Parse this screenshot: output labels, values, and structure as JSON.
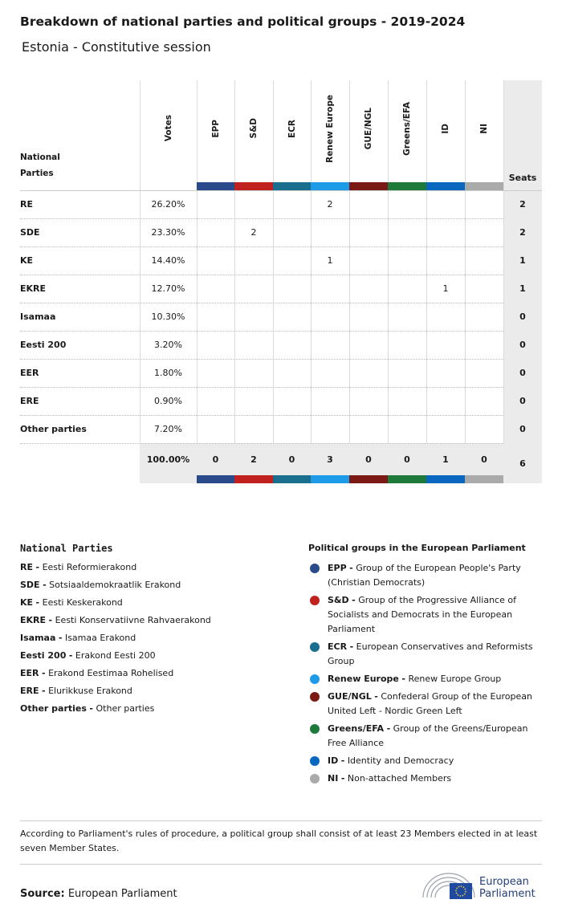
{
  "header": {
    "title": "Breakdown of national parties and political groups - 2019-2024",
    "subtitle": "Estonia - Constitutive session"
  },
  "table": {
    "party_header": "National Parties",
    "votes_header": "Votes",
    "seats_header": "Seats",
    "groups": [
      {
        "name": "EPP",
        "color": "#2b4a8b"
      },
      {
        "name": "S&D",
        "color": "#c0201e"
      },
      {
        "name": "ECR",
        "color": "#1a6f8f"
      },
      {
        "name": "Renew Europe",
        "color": "#1e9be8"
      },
      {
        "name": "GUE/NGL",
        "color": "#7b1a14"
      },
      {
        "name": "Greens/EFA",
        "color": "#1e7a3a"
      },
      {
        "name": "ID",
        "color": "#0a67c0"
      },
      {
        "name": "NI",
        "color": "#aaaaaa"
      }
    ],
    "rows": [
      {
        "party": "RE",
        "votes": "26.20%",
        "groups": [
          null,
          null,
          null,
          2,
          null,
          null,
          null,
          null
        ],
        "seats": 2
      },
      {
        "party": "SDE",
        "votes": "23.30%",
        "groups": [
          null,
          2,
          null,
          null,
          null,
          null,
          null,
          null
        ],
        "seats": 2
      },
      {
        "party": "KE",
        "votes": "14.40%",
        "groups": [
          null,
          null,
          null,
          1,
          null,
          null,
          null,
          null
        ],
        "seats": 1
      },
      {
        "party": "EKRE",
        "votes": "12.70%",
        "groups": [
          null,
          null,
          null,
          null,
          null,
          null,
          1,
          null
        ],
        "seats": 1
      },
      {
        "party": "Isamaa",
        "votes": "10.30%",
        "groups": [
          null,
          null,
          null,
          null,
          null,
          null,
          null,
          null
        ],
        "seats": 0
      },
      {
        "party": "Eesti 200",
        "votes": "3.20%",
        "groups": [
          null,
          null,
          null,
          null,
          null,
          null,
          null,
          null
        ],
        "seats": 0
      },
      {
        "party": "EER",
        "votes": "1.80%",
        "groups": [
          null,
          null,
          null,
          null,
          null,
          null,
          null,
          null
        ],
        "seats": 0
      },
      {
        "party": "ERE",
        "votes": "0.90%",
        "groups": [
          null,
          null,
          null,
          null,
          null,
          null,
          null,
          null
        ],
        "seats": 0
      },
      {
        "party": "Other parties",
        "votes": "7.20%",
        "groups": [
          null,
          null,
          null,
          null,
          null,
          null,
          null,
          null
        ],
        "seats": 0
      }
    ],
    "totals": {
      "votes": "100.00%",
      "groups": [
        0,
        2,
        0,
        3,
        0,
        0,
        1,
        0
      ],
      "seats": 6
    }
  },
  "legend_separator": "-",
  "national_legend": {
    "title": "National Parties",
    "items": [
      {
        "abbr": "RE",
        "name": "Eesti Reformierakond"
      },
      {
        "abbr": "SDE",
        "name": "Sotsiaaldemokraatlik Erakond"
      },
      {
        "abbr": "KE",
        "name": "Eesti Keskerakond"
      },
      {
        "abbr": "EKRE",
        "name": "Eesti Konservatiivne Rahvaerakond"
      },
      {
        "abbr": "Isamaa",
        "name": "Isamaa Erakond"
      },
      {
        "abbr": "Eesti 200",
        "name": "Erakond Eesti 200"
      },
      {
        "abbr": "EER",
        "name": "Erakond Eestimaa Rohelised"
      },
      {
        "abbr": "ERE",
        "name": "Elurikkuse Erakond"
      },
      {
        "abbr": "Other parties",
        "name": "Other parties"
      }
    ]
  },
  "group_legend": {
    "title": "Political groups in the European Parliament",
    "items": [
      {
        "abbr": "EPP",
        "name": "Group of the European People's Party (Christian Democrats)",
        "color": "#2b4a8b"
      },
      {
        "abbr": "S&D",
        "name": "Group of the Progressive Alliance of Socialists and Democrats in the European Parliament",
        "color": "#c0201e"
      },
      {
        "abbr": "ECR",
        "name": "European Conservatives and Reformists Group",
        "color": "#1a6f8f"
      },
      {
        "abbr": "Renew Europe",
        "name": "Renew Europe Group",
        "color": "#1e9be8"
      },
      {
        "abbr": "GUE/NGL",
        "name": "Confederal Group of the European United Left - Nordic Green Left",
        "color": "#7b1a14"
      },
      {
        "abbr": "Greens/EFA",
        "name": "Group of the Greens/European Free Alliance",
        "color": "#1e7a3a"
      },
      {
        "abbr": "ID",
        "name": "Identity and Democracy",
        "color": "#0a67c0"
      },
      {
        "abbr": "NI",
        "name": "Non-attached Members",
        "color": "#aaaaaa"
      }
    ]
  },
  "note": "According to Parliament's rules of procedure, a political group shall consist of at least 23 Members elected in at least seven Member States.",
  "source": {
    "label": "Source:",
    "text": "European Parliament"
  },
  "logo": {
    "lines": [
      "European",
      "Parliament"
    ]
  }
}
